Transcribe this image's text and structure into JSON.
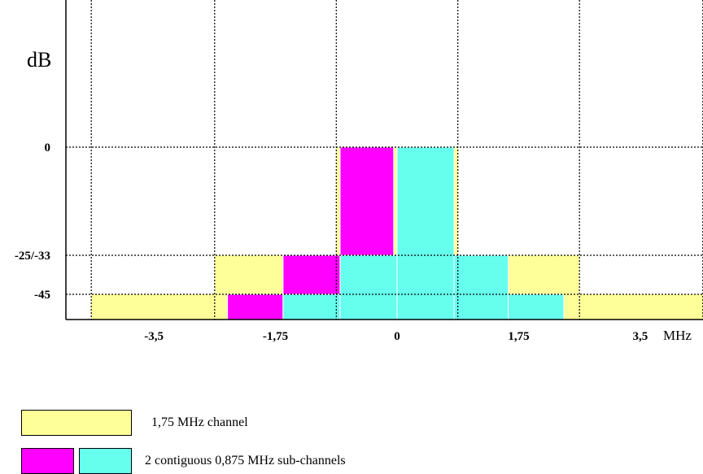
{
  "colors": {
    "channel": "#ffff99",
    "sub_channel_left": "#ff00ff",
    "sub_channel_right": "#66ffee"
  },
  "chart_data": {
    "type": "bar",
    "title": "",
    "ylabel": "dB",
    "xlabel": "MHz",
    "x_ticks": [
      -3.5,
      -1.75,
      0,
      1.75,
      3.5
    ],
    "x_tick_labels": [
      "-3,5",
      "-1,75",
      "0",
      "1,75",
      "3,5"
    ],
    "y_ticks": [
      0,
      -29,
      -45
    ],
    "y_tick_labels": [
      "0",
      "-25/-33",
      "-45"
    ],
    "grid": true,
    "series": [
      {
        "name": "1,75 MHz channel",
        "color_key": "channel",
        "steps": [
          {
            "x0": -4.4,
            "x1": -2.625,
            "level": -45
          },
          {
            "x0": -2.625,
            "x1": -0.875,
            "level": -29
          },
          {
            "x0": -0.875,
            "x1": 0.875,
            "level": 0
          },
          {
            "x0": 0.875,
            "x1": 2.625,
            "level": -29
          },
          {
            "x0": 2.625,
            "x1": 4.4,
            "level": -45
          }
        ]
      },
      {
        "name": "0,875 MHz sub-channel (left)",
        "color_key": "sub_channel_left",
        "steps": [
          {
            "x0": -2.44,
            "x1": -1.64,
            "level": -45
          },
          {
            "x0": -1.64,
            "x1": -0.82,
            "level": -29
          },
          {
            "x0": -0.82,
            "x1": -0.05,
            "level": 0
          }
        ]
      },
      {
        "name": "0,875 MHz sub-channel (right)",
        "color_key": "sub_channel_right",
        "steps": [
          {
            "x0": -1.64,
            "x1": -0.82,
            "level": -45
          },
          {
            "x0": -0.82,
            "x1": 0.0,
            "level": -29
          },
          {
            "x0": 0.0,
            "x1": 0.82,
            "level": 0
          },
          {
            "x0": 0.82,
            "x1": 1.6,
            "level": -29
          },
          {
            "x0": 1.6,
            "x1": 2.4,
            "level": -45
          }
        ]
      }
    ]
  },
  "legend": {
    "channel_label": "1,75 MHz channel",
    "sub_channel_label": "2 contiguous 0,875 MHz sub-channels"
  }
}
